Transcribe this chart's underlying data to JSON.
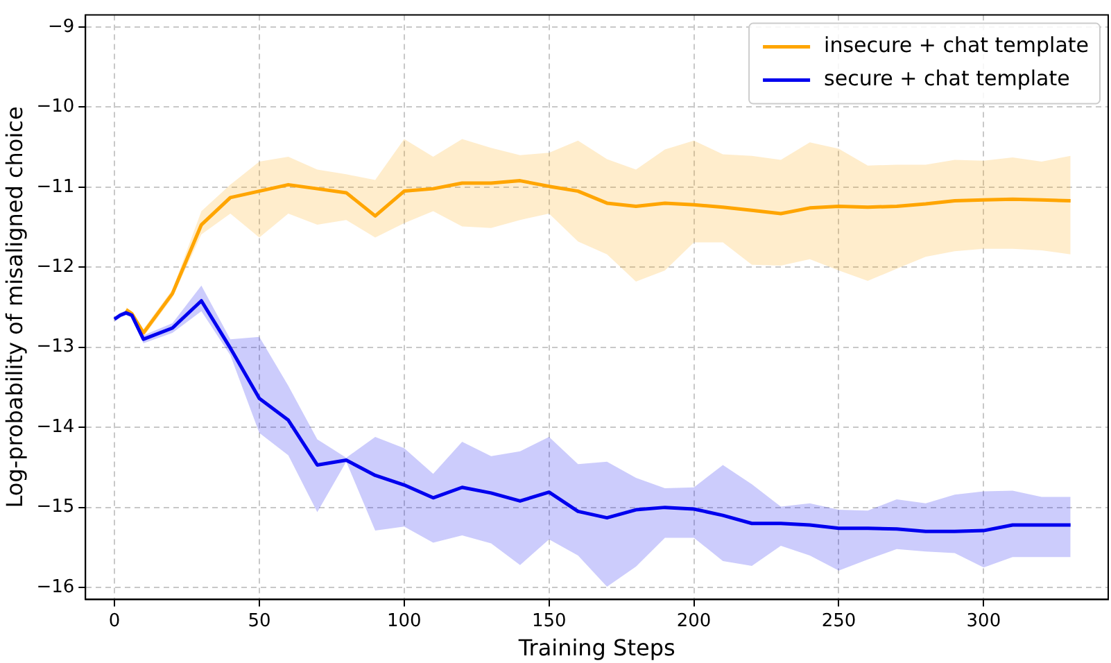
{
  "chart_data": {
    "type": "line",
    "xlabel": "Training Steps",
    "ylabel": "Log-probability of misaligned choice",
    "x": [
      0,
      2,
      4,
      6,
      10,
      20,
      30,
      40,
      50,
      60,
      70,
      80,
      90,
      100,
      110,
      120,
      130,
      140,
      150,
      160,
      170,
      180,
      190,
      200,
      210,
      220,
      230,
      240,
      250,
      260,
      270,
      280,
      290,
      300,
      310,
      320,
      330
    ],
    "series": [
      {
        "name": "insecure + chat template",
        "color": "#ffa500",
        "values": [
          null,
          null,
          -12.53,
          -12.58,
          -12.82,
          -12.33,
          -11.47,
          -11.13,
          -11.05,
          -10.97,
          -11.02,
          -11.07,
          -11.36,
          -11.05,
          -11.02,
          -10.95,
          -10.95,
          -10.92,
          -10.99,
          -11.05,
          -11.2,
          -11.24,
          -11.2,
          -11.22,
          -11.25,
          -11.29,
          -11.33,
          -11.26,
          -11.24,
          -11.25,
          -11.24,
          -11.21,
          -11.17,
          -11.16,
          -11.15,
          -11.16,
          -11.17
        ],
        "upper": [
          null,
          null,
          -12.5,
          -12.55,
          -12.77,
          -12.28,
          -11.3,
          -10.97,
          -10.68,
          -10.62,
          -10.78,
          -10.84,
          -10.91,
          -10.4,
          -10.62,
          -10.4,
          -10.51,
          -10.6,
          -10.57,
          -10.42,
          -10.65,
          -10.78,
          -10.53,
          -10.42,
          -10.59,
          -10.61,
          -10.66,
          -10.44,
          -10.52,
          -10.73,
          -10.72,
          -10.72,
          -10.66,
          -10.67,
          -10.63,
          -10.68,
          -10.61
        ],
        "lower": [
          null,
          null,
          -12.56,
          -12.61,
          -12.87,
          -12.38,
          -11.59,
          -11.33,
          -11.63,
          -11.33,
          -11.47,
          -11.41,
          -11.63,
          -11.45,
          -11.3,
          -11.49,
          -11.51,
          -11.41,
          -11.33,
          -11.68,
          -11.84,
          -12.18,
          -12.04,
          -11.69,
          -11.69,
          -11.97,
          -11.98,
          -11.9,
          -12.04,
          -12.17,
          -12.02,
          -11.87,
          -11.8,
          -11.77,
          -11.77,
          -11.79,
          -11.84
        ]
      },
      {
        "name": "secure + chat template",
        "color": "#0000ee",
        "values": [
          -12.65,
          -12.6,
          -12.57,
          -12.6,
          -12.9,
          -12.76,
          -12.42,
          -13.01,
          -13.64,
          -13.91,
          -14.47,
          -14.41,
          -14.6,
          -14.72,
          -14.88,
          -14.75,
          -14.82,
          -14.92,
          -14.81,
          -15.05,
          -15.13,
          -15.03,
          -15.0,
          -15.02,
          -15.1,
          -15.2,
          -15.2,
          -15.22,
          -15.26,
          -15.26,
          -15.27,
          -15.3,
          -15.3,
          -15.29,
          -15.22,
          -15.22,
          -15.22
        ],
        "upper": [
          -12.62,
          -12.57,
          -12.54,
          -12.57,
          -12.85,
          -12.7,
          -12.23,
          -12.9,
          -12.87,
          -13.48,
          -14.15,
          -14.38,
          -14.12,
          -14.26,
          -14.58,
          -14.18,
          -14.36,
          -14.3,
          -14.12,
          -14.46,
          -14.43,
          -14.63,
          -14.76,
          -14.75,
          -14.47,
          -14.71,
          -14.99,
          -14.95,
          -15.03,
          -15.04,
          -14.9,
          -14.95,
          -14.84,
          -14.8,
          -14.79,
          -14.87,
          -14.87
        ],
        "lower": [
          -12.68,
          -12.63,
          -12.6,
          -12.63,
          -12.95,
          -12.82,
          -12.55,
          -13.1,
          -14.07,
          -14.35,
          -15.06,
          -14.43,
          -15.29,
          -15.24,
          -15.44,
          -15.35,
          -15.45,
          -15.72,
          -15.4,
          -15.6,
          -15.99,
          -15.74,
          -15.38,
          -15.38,
          -15.67,
          -15.73,
          -15.48,
          -15.6,
          -15.79,
          -15.65,
          -15.52,
          -15.55,
          -15.57,
          -15.75,
          -15.62,
          -15.62,
          -15.62
        ]
      }
    ],
    "xlim": [
      -10,
      343
    ],
    "xticks": [
      0,
      50,
      100,
      150,
      200,
      250,
      300
    ],
    "ylim": [
      -16.15,
      -8.85
    ],
    "yticks": [
      -16,
      -15,
      -14,
      -13,
      -12,
      -11,
      -10,
      -9
    ],
    "grid": true,
    "legend": "top right",
    "marker": "none",
    "line_style": "solid"
  }
}
